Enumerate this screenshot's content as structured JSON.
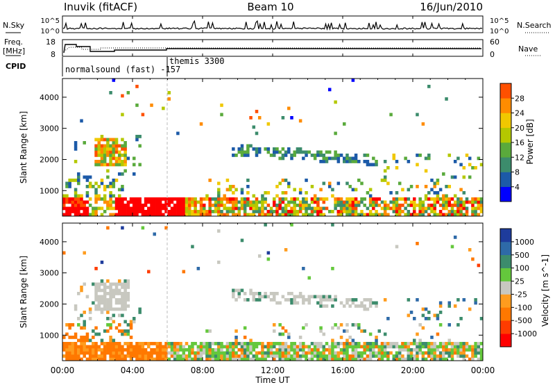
{
  "header": {
    "station": "Inuvik  (fitACF)",
    "beam": "Beam 10",
    "date": "16/Jun/2010"
  },
  "noise_panel": {
    "left_label": "N.Sky",
    "right_label": "N.Search",
    "left_ticks": [
      "10^5",
      "10^0"
    ],
    "right_ticks": [
      "10^5",
      "10^0"
    ]
  },
  "freq_panel": {
    "left_label_1": "Freq.",
    "left_label_2": "[MHz]",
    "right_label": "Nave",
    "left_ticks": [
      "18",
      "8"
    ],
    "right_ticks": [
      "60",
      "0"
    ]
  },
  "cpid": {
    "label": "CPID",
    "program_1": "normalsound (fast) -157",
    "program_2": "themis 3300"
  },
  "power_panel": {
    "ylabel": "Slant Range [km]",
    "yticks": [
      "4000",
      "3000",
      "2000",
      "1000"
    ],
    "colorbar_label": "Power [dB]",
    "colorbar_ticks": [
      "28",
      "24",
      "20",
      "16",
      "12",
      "8",
      "4"
    ],
    "colors": [
      "#0000ff",
      "#1c5aa8",
      "#3c8c6c",
      "#5aaa3c",
      "#b4c800",
      "#f0c800",
      "#ff8c00",
      "#ff5000",
      "#ff0000"
    ]
  },
  "velocity_panel": {
    "ylabel": "Slant Range [km]",
    "yticks": [
      "4000",
      "3000",
      "2000",
      "1000"
    ],
    "colorbar_label": "Velocity [m s^-1]",
    "colorbar_ticks": [
      "1000",
      "500",
      "100",
      "25",
      "-25",
      "-100",
      "-500",
      "-1000"
    ],
    "colors": [
      "#1e3c9c",
      "#2e6aa8",
      "#3c8c6c",
      "#64c83c",
      "#c8c8c0",
      "#ff9c1e",
      "#ff7800",
      "#ff3c00",
      "#ff0000"
    ]
  },
  "xaxis": {
    "label": "Time UT",
    "ticks": [
      "00:00",
      "04:00",
      "08:00",
      "12:00",
      "16:00",
      "20:00",
      "00:00"
    ]
  },
  "chart_data": {
    "type": "heatmap",
    "title": "Inuvik (fitACF) Beam 10 16/Jun/2010",
    "xlabel": "Time UT",
    "ylabel": "Slant Range [km]",
    "xlim": [
      "00:00",
      "24:00"
    ],
    "ylim": [
      180,
      4600
    ],
    "x": [
      "00:00",
      "04:00",
      "08:00",
      "12:00",
      "16:00",
      "20:00",
      "00:00"
    ],
    "series": [
      {
        "name": "Power [dB]",
        "scale": [
          4,
          8,
          12,
          16,
          20,
          24,
          28
        ],
        "features": [
          {
            "t": "00:00-01:30",
            "range": "200-800",
            "value": 28
          },
          {
            "t": "02:00-03:30",
            "range": "1800-2600",
            "value": 20
          },
          {
            "t": "03:00-07:00",
            "range": "200-800",
            "value": 28
          },
          {
            "t": "07:00-24:00",
            "range": "200-800",
            "value": 16
          },
          {
            "t": "09:30-18:00",
            "range": "1800-2400",
            "value": 8
          }
        ]
      },
      {
        "name": "Velocity [m s^-1]",
        "scale": [
          -1000,
          -500,
          -100,
          -25,
          25,
          100,
          500,
          1000
        ],
        "features": [
          {
            "t": "00:00-06:00",
            "range": "200-800",
            "value": -300
          },
          {
            "t": "06:00-24:00",
            "range": "200-800",
            "value": 100
          },
          {
            "t": "02:00-04:00",
            "range": "1800-2700",
            "value": 0
          },
          {
            "t": "12:00-18:00",
            "range": "1800-2200",
            "value": 0
          }
        ]
      }
    ],
    "cpid_segments": [
      {
        "label": "normalsound (fast) -157",
        "t": "00:00-06:00"
      },
      {
        "label": "themis 3300",
        "t": "06:00-24:00"
      }
    ],
    "grid": false
  }
}
